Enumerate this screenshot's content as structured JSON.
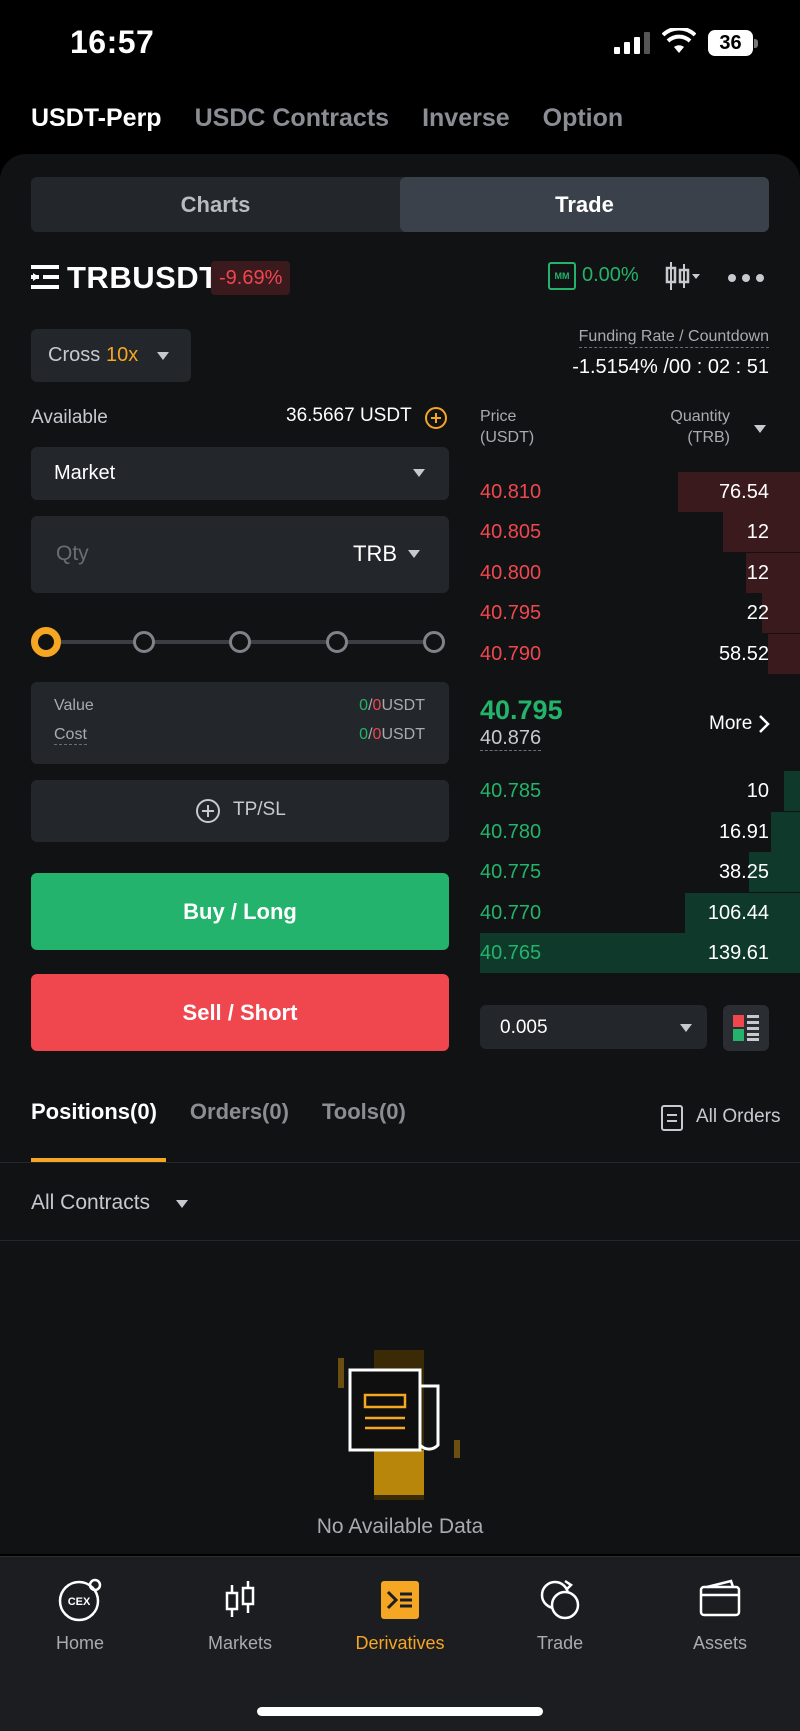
{
  "status_bar": {
    "time": "16:57",
    "battery": "36"
  },
  "top_tabs": [
    "USDT-Perp",
    "USDC Contracts",
    "Inverse",
    "Option"
  ],
  "segment": {
    "charts": "Charts",
    "trade": "Trade"
  },
  "symbol": {
    "name": "TRBUSDT",
    "change": "-9.69%",
    "mm_label": "MM",
    "mm_value": "0.00%"
  },
  "margin": {
    "mode": "Cross",
    "leverage": "10x"
  },
  "funding": {
    "label": "Funding Rate / Countdown",
    "value": "-1.5154% /00 : 02 : 51"
  },
  "available": {
    "label": "Available",
    "value": "36.5667 USDT"
  },
  "order_type": "Market",
  "qty": {
    "placeholder": "Qty",
    "unit": "TRB"
  },
  "slider_level": 0,
  "value_cost": {
    "value_label": "Value",
    "value_a": "0",
    "value_sep": "/",
    "value_b": "0",
    "value_unit": "USDT",
    "cost_label": "Cost",
    "cost_a": "0",
    "cost_sep": "/",
    "cost_b": "0",
    "cost_unit": "USDT"
  },
  "tpsl_label": "TP/SL",
  "buy_label": "Buy / Long",
  "sell_label": "Sell / Short",
  "orderbook": {
    "price_header_1": "Price",
    "price_header_2": "(USDT)",
    "qty_header_1": "Quantity",
    "qty_header_2": "(TRB)",
    "asks": [
      {
        "price": "40.810",
        "qty": "76.54",
        "depth": 0.38
      },
      {
        "price": "40.805",
        "qty": "12",
        "depth": 0.24
      },
      {
        "price": "40.800",
        "qty": "12",
        "depth": 0.17
      },
      {
        "price": "40.795",
        "qty": "22",
        "depth": 0.12
      },
      {
        "price": "40.790",
        "qty": "58.52",
        "depth": 0.1
      }
    ],
    "last_price": "40.795",
    "mark_price": "40.876",
    "more_label": "More",
    "bids": [
      {
        "price": "40.785",
        "qty": "10",
        "depth": 0.05
      },
      {
        "price": "40.780",
        "qty": "16.91",
        "depth": 0.09
      },
      {
        "price": "40.775",
        "qty": "38.25",
        "depth": 0.16
      },
      {
        "price": "40.770",
        "qty": "106.44",
        "depth": 0.36
      },
      {
        "price": "40.765",
        "qty": "139.61",
        "depth": 1.0
      }
    ],
    "tick_size": "0.005"
  },
  "position_tabs": [
    "Positions(0)",
    "Orders(0)",
    "Tools(0)"
  ],
  "all_orders_label": "All Orders",
  "contracts_filter": "All Contracts",
  "empty_label": "No Available Data",
  "bottom_nav": [
    {
      "label": "Home",
      "icon": "cex-home-icon",
      "badge": "CEX"
    },
    {
      "label": "Markets",
      "icon": "candlestick-icon"
    },
    {
      "label": "Derivatives",
      "icon": "derivatives-icon"
    },
    {
      "label": "Trade",
      "icon": "trade-icon"
    },
    {
      "label": "Assets",
      "icon": "wallet-icon"
    }
  ],
  "colors": {
    "accent": "#f5a623",
    "buy": "#23b36c",
    "sell": "#f0474f",
    "background": "#111214"
  }
}
